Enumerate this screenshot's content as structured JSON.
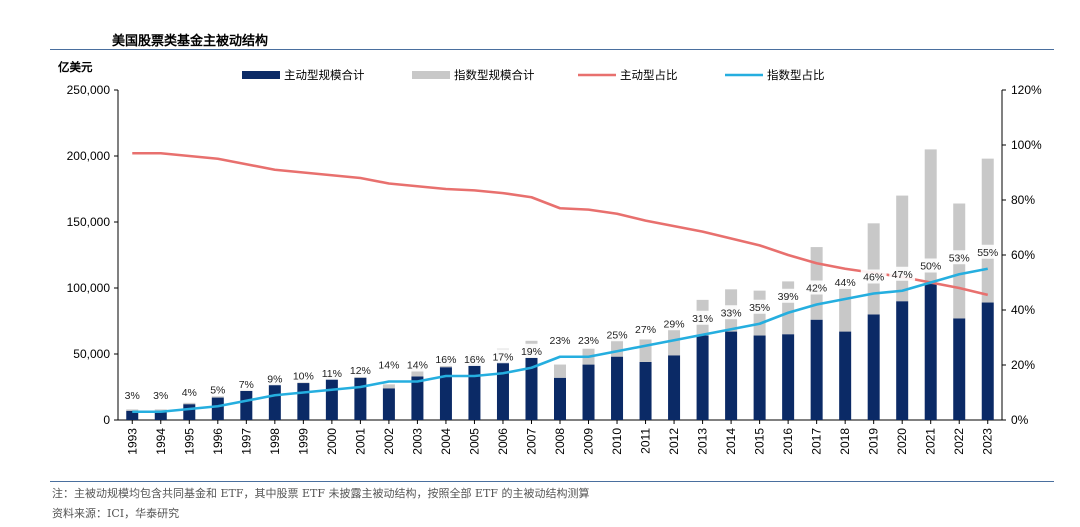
{
  "title": "美国股票类基金主被动结构",
  "footnote": "注：主被动规模均包含共同基金和 ETF，其中股票 ETF 未披露主被动结构，按照全部 ETF 的主被动结构测算",
  "source": "资料来源：ICI，华泰研究",
  "colors": {
    "active_bar": "#0b2a66",
    "index_bar": "#c8c8c8",
    "active_line": "#e8706e",
    "index_line": "#25aedf",
    "rule": "#4a6f9e"
  },
  "chart_data": {
    "type": "bar",
    "stacked": true,
    "unit_label": "亿美元",
    "categories": [
      "1993",
      "1994",
      "1995",
      "1996",
      "1997",
      "1998",
      "1999",
      "2000",
      "2001",
      "2002",
      "2003",
      "2004",
      "2005",
      "2006",
      "2007",
      "2008",
      "2009",
      "2010",
      "2011",
      "2012",
      "2013",
      "2014",
      "2015",
      "2016",
      "2017",
      "2018",
      "2019",
      "2020",
      "2021",
      "2022",
      "2023"
    ],
    "series": [
      {
        "name": "主动型规模合计",
        "kind": "bar",
        "axis": "left",
        "values": [
          7000,
          7000,
          12000,
          17000,
          22000,
          27000,
          28000,
          31000,
          32000,
          24000,
          33000,
          40000,
          42000,
          44000,
          47000,
          32000,
          42000,
          48000,
          44000,
          49000,
          64000,
          67000,
          64000,
          65000,
          76000,
          67000,
          80000,
          90000,
          103000,
          77000,
          89000
        ]
      },
      {
        "name": "指数型规模合计",
        "kind": "bar",
        "axis": "left",
        "values": [
          1000,
          1000,
          1000,
          1000,
          2000,
          3000,
          3000,
          4000,
          4000,
          3000,
          6000,
          7000,
          8000,
          10000,
          13000,
          10000,
          12000,
          15000,
          17000,
          21000,
          27000,
          32000,
          34000,
          40000,
          55000,
          34000,
          69000,
          80000,
          102000,
          87000,
          109000
        ]
      },
      {
        "name": "主动型占比",
        "kind": "line",
        "axis": "right",
        "values": [
          97,
          97,
          96,
          95,
          93,
          91,
          90,
          89,
          88,
          86,
          85,
          84,
          83.5,
          82.5,
          81,
          77,
          76.5,
          75,
          72.5,
          70.5,
          68.5,
          66,
          63.5,
          60,
          57,
          55,
          53.5,
          52,
          50,
          48,
          45.5
        ]
      },
      {
        "name": "指数型占比",
        "kind": "line",
        "axis": "right",
        "values": [
          3,
          3,
          4,
          5,
          7,
          9,
          10,
          11,
          12,
          14,
          14,
          16,
          16,
          17,
          19,
          23,
          23,
          25,
          27,
          29,
          31,
          33,
          35,
          39,
          42,
          44,
          46,
          47,
          50,
          53,
          55
        ],
        "labels": [
          "3%",
          "3%",
          "4%",
          "5%",
          "7%",
          "9%",
          "10%",
          "11%",
          "12%",
          "14%",
          "14%",
          "16%",
          "16%",
          "17%",
          "19%",
          "23%",
          "23%",
          "25%",
          "27%",
          "29%",
          "31%",
          "33%",
          "35%",
          "39%",
          "42%",
          "44%",
          "46%",
          "47%",
          "50%",
          "53%",
          "55%"
        ]
      }
    ],
    "y_left": {
      "min": 0,
      "max": 250000,
      "ticks": [
        "0",
        "50,000",
        "100,000",
        "150,000",
        "200,000",
        "250,000"
      ]
    },
    "y_right": {
      "min": 0,
      "max": 120,
      "ticks": [
        "0%",
        "20%",
        "40%",
        "60%",
        "80%",
        "100%",
        "120%"
      ]
    },
    "legend_position": "top",
    "grid": false
  }
}
